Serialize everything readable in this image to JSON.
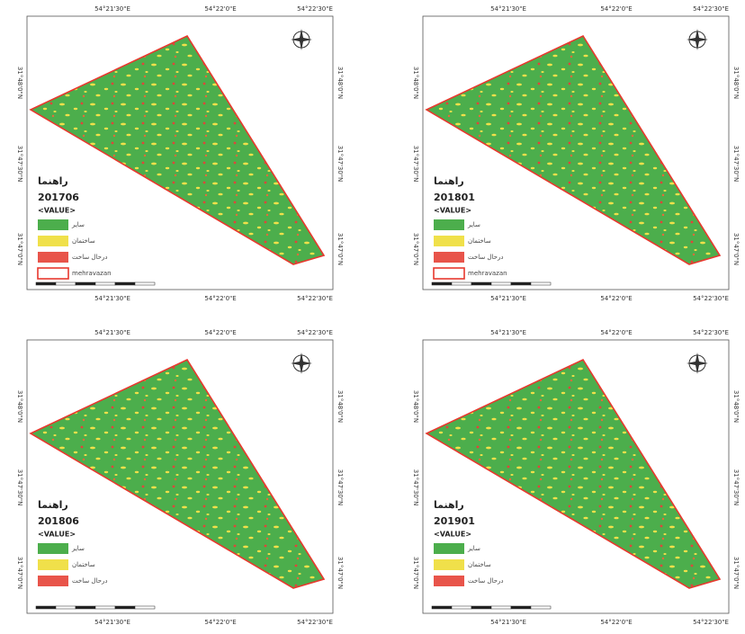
{
  "panels": [
    {
      "top_labels": [
        "54°21'30\"E",
        "54°22'0\"E",
        "54°22'30\"E"
      ],
      "bottom_labels": [
        "54°21'30\"E",
        "54°22'0\"E",
        "54°22'30\"E"
      ],
      "left_labels": [
        "31°48'0\"N",
        "31°47'30\"N",
        "31°47'0\"N"
      ],
      "right_labels": [
        "31°48'0\"N",
        "31°47'30\"N",
        "31°47'0\"N"
      ],
      "legend": {
        "title": "راهنما",
        "date": "201706",
        "value": "<VALUE>",
        "items": [
          "سایر",
          "ساختمان",
          "درحال ساخت"
        ],
        "boundary": "mehravazan"
      }
    },
    {
      "top_labels": [
        "54°21'30\"E",
        "54°22'0\"E",
        "54°22'30\"E"
      ],
      "bottom_labels": [
        "54°21'30\"E",
        "54°22'0\"E",
        "54°22'30\"E"
      ],
      "left_labels": [
        "31°48'0\"N",
        "31°47'30\"N",
        "31°47'0\"N"
      ],
      "right_labels": [
        "31°48'0\"N",
        "31°47'30\"N",
        "31°47'0\"N"
      ],
      "legend": {
        "title": "راهنما",
        "date": "201801",
        "value": "<VALUE>",
        "items": [
          "سایر",
          "ساختمان",
          "درحال ساخت"
        ],
        "boundary": "mehravazan"
      }
    },
    {
      "top_labels": [
        "54°21'30\"E",
        "54°22'0\"E",
        "54°22'30\"E"
      ],
      "bottom_labels": [
        "54°21'30\"E",
        "54°22'0\"E",
        "54°22'30\"E"
      ],
      "left_labels": [
        "31°48'0\"N",
        "31°47'30\"N",
        "31°47'0\"N"
      ],
      "right_labels": [
        "31°48'0\"N",
        "31°47'30\"N",
        "31°47'0\"N"
      ],
      "legend": {
        "title": "راهنما",
        "date": "201806",
        "value": "<VALUE>",
        "items": [
          "سایر",
          "ساختمان",
          "درحال ساخت"
        ]
      }
    },
    {
      "top_labels": [
        "54°21'30\"E",
        "54°22'0\"E",
        "54°22'30\"E"
      ],
      "bottom_labels": [
        "54°21'30\"E",
        "54°22'0\"E",
        "54°22'30\"E"
      ],
      "left_labels": [
        "31°48'0\"N",
        "31°47'30\"N",
        "31°47'0\"N"
      ],
      "right_labels": [
        "31°48'0\"N",
        "31°47'30\"N",
        "31°47'0\"N"
      ],
      "legend": {
        "title": "راهنما",
        "date": "201901",
        "value": "<VALUE>",
        "items": [
          "سایر",
          "ساختمان",
          "درحال ساخت"
        ]
      }
    }
  ]
}
